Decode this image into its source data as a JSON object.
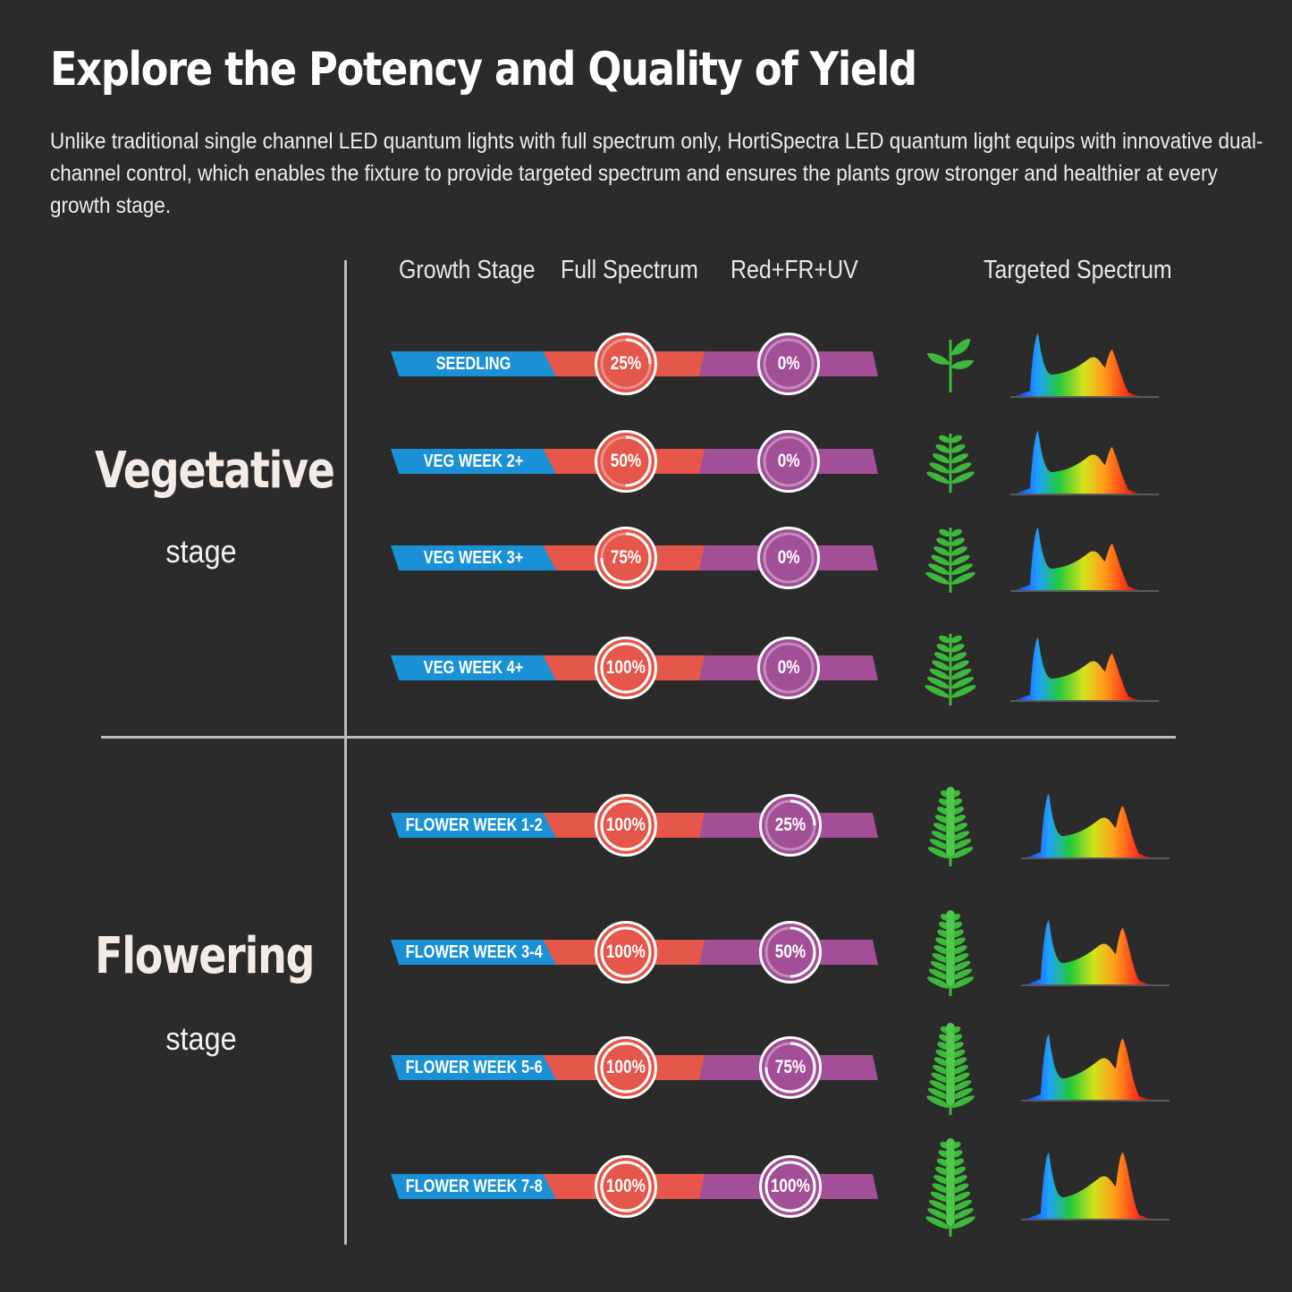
{
  "header": {
    "title": "Explore the Potency and Quality of Yield",
    "subtitle": "Unlike traditional single channel LED quantum lights with full spectrum only, HortiSpectra LED quantum light equips with innovative dual-channel control, which enables the fixture to provide targeted spectrum and ensures the plants grow stronger and healthier at every growth stage."
  },
  "columns": {
    "growth_stage": "Growth Stage",
    "full_spectrum": "Full Spectrum",
    "red_fr_uv": "Red+FR+UV",
    "targeted_spectrum": "Targeted Spectrum"
  },
  "groups": [
    {
      "name": "Vegetative",
      "sub": "stage",
      "rows": [
        {
          "stage": "SEEDLING",
          "full": "25%",
          "red": "0%",
          "full_level": 0.25,
          "red_level": 0,
          "plant_icon": "seedling-icon",
          "plant_size": 1
        },
        {
          "stage": "VEG WEEK 2+",
          "full": "50%",
          "red": "0%",
          "full_level": 0.5,
          "red_level": 0,
          "plant_icon": "young-plant-icon",
          "plant_size": 2
        },
        {
          "stage": "VEG WEEK 3+",
          "full": "75%",
          "red": "0%",
          "full_level": 0.75,
          "red_level": 0,
          "plant_icon": "young-plant-icon",
          "plant_size": 3
        },
        {
          "stage": "VEG WEEK 4+",
          "full": "100%",
          "red": "0%",
          "full_level": 1,
          "red_level": 0,
          "plant_icon": "young-plant-icon",
          "plant_size": 4
        }
      ]
    },
    {
      "name": "Flowering",
      "sub": "stage",
      "rows": [
        {
          "stage": "FLOWER WEEK  1-2",
          "full": "100%",
          "red": "25%",
          "full_level": 1,
          "red_level": 0.25,
          "plant_icon": "flowering-plant-icon",
          "plant_size": 5
        },
        {
          "stage": "FLOWER WEEK 3-4",
          "full": "100%",
          "red": "50%",
          "full_level": 1,
          "red_level": 0.5,
          "plant_icon": "flowering-plant-icon",
          "plant_size": 6
        },
        {
          "stage": "FLOWER WEEK 5-6",
          "full": "100%",
          "red": "75%",
          "full_level": 1,
          "red_level": 0.75,
          "plant_icon": "flowering-plant-icon",
          "plant_size": 7
        },
        {
          "stage": "FLOWER WEEK 7-8",
          "full": "100%",
          "red": "100%",
          "full_level": 1,
          "red_level": 1,
          "plant_icon": "flowering-plant-icon",
          "plant_size": 8
        }
      ]
    }
  ],
  "colors": {
    "background": "#2b2b2b",
    "stage_label": "#1a90d6",
    "full_spectrum": "#e4574a",
    "red_fr_uv": "#a24f97",
    "plant": "#3cb83a"
  }
}
